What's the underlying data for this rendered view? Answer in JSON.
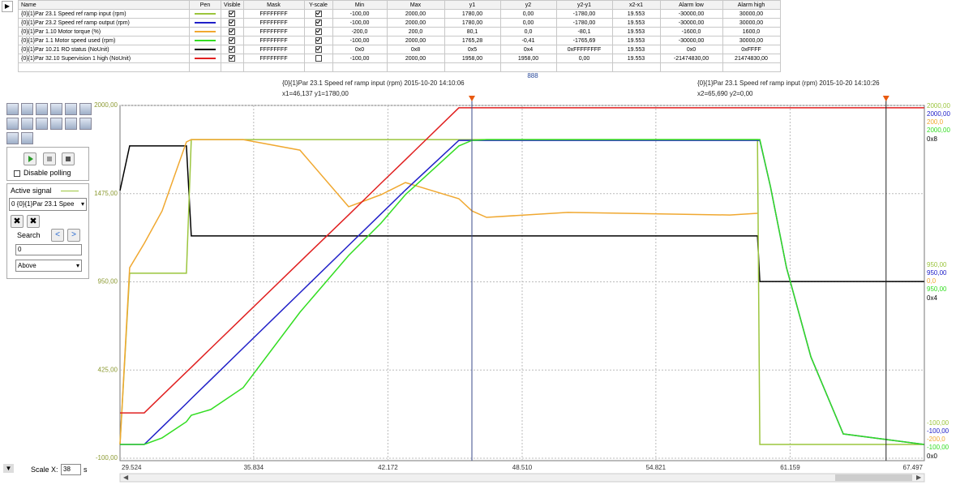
{
  "table": {
    "headers": [
      "Name",
      "Pen",
      "Visible",
      "Mask",
      "Y-scale",
      "Min",
      "Max",
      "y1",
      "y2",
      "y2-y1",
      "x2-x1",
      "Alarm low",
      "Alarm high"
    ],
    "rows": [
      {
        "name": "{0}{1}Par 23.1 Speed ref ramp input (rpm)",
        "pen": "#9bc53d",
        "visible": true,
        "mask": "FFFFFFFF",
        "y_scale": true,
        "min": "-100,00",
        "max": "2000,00",
        "y1": "1780,00",
        "y2": "0,00",
        "y2_y1": "-1780,00",
        "x2_x1": "19.553",
        "alarm_low": "-30000,00",
        "alarm_high": "30000,00"
      },
      {
        "name": "{0}{1}Par 23.2 Speed ref ramp output (rpm)",
        "pen": "#2020c8",
        "visible": true,
        "mask": "FFFFFFFF",
        "y_scale": true,
        "min": "-100,00",
        "max": "2000,00",
        "y1": "1780,00",
        "y2": "0,00",
        "y2_y1": "-1780,00",
        "x2_x1": "19.553",
        "alarm_low": "-30000,00",
        "alarm_high": "30000,00"
      },
      {
        "name": "{0}{1}Par 1.10 Motor torque (%)",
        "pen": "#f0a830",
        "visible": true,
        "mask": "FFFFFFFF",
        "y_scale": true,
        "min": "-200,0",
        "max": "200,0",
        "y1": "80,1",
        "y2": "0,0",
        "y2_y1": "-80,1",
        "x2_x1": "19.553",
        "alarm_low": "-1600,0",
        "alarm_high": "1600,0"
      },
      {
        "name": "{0}{1}Par 1.1 Motor speed used (rpm)",
        "pen": "#33dd22",
        "visible": true,
        "mask": "FFFFFFFF",
        "y_scale": true,
        "min": "-100,00",
        "max": "2000,00",
        "y1": "1765,28",
        "y2": "-0,41",
        "y2_y1": "-1765,69",
        "x2_x1": "19.553",
        "alarm_low": "-30000,00",
        "alarm_high": "30000,00"
      },
      {
        "name": "{0}{1}Par 10.21 RO status (NoUnit)",
        "pen": "#000000",
        "visible": true,
        "mask": "FFFFFFFF",
        "y_scale": true,
        "min": "0x0",
        "max": "0x8",
        "y1": "0x5",
        "y2": "0x4",
        "y2_y1": "0xFFFFFFFF",
        "x2_x1": "19.553",
        "alarm_low": "0x0",
        "alarm_high": "0xFFFF"
      },
      {
        "name": "{0}{1}Par 32.10 Supervision 1 high (NoUnit)",
        "pen": "#e02020",
        "visible": true,
        "mask": "FFFFFFFF",
        "y_scale": false,
        "min": "-100,00",
        "max": "2000,00",
        "y1": "1958,00",
        "y2": "1958,00",
        "y2_y1": "0,00",
        "x2_x1": "19.553",
        "alarm_low": "-21474830,00",
        "alarm_high": "21474830,00"
      }
    ]
  },
  "stray_label": "888",
  "chart_data": {
    "type": "line",
    "xlim": [
      29.524,
      67.497
    ],
    "ylim": [
      -100,
      2000
    ],
    "xticks": [
      29.524,
      35.834,
      42.172,
      {
        "value": 48.51,
        "label": "48.510"
      },
      54.821,
      61.159,
      67.497
    ],
    "yticks": [
      {
        "value": -100,
        "label": "-100,00"
      },
      {
        "value": 425,
        "label": "425,00"
      },
      {
        "value": 950,
        "label": "950,00"
      },
      {
        "value": 1475,
        "label": "1475,00"
      },
      {
        "value": 2000,
        "label": "2000,00"
      }
    ],
    "grid": true,
    "x": [
      29.524,
      29.98,
      30.67,
      31.51,
      32.66,
      32.89,
      33.81,
      35.34,
      38.02,
      40.32,
      41.85,
      43.0,
      45.52,
      46.14,
      46.83,
      50.66,
      58.31,
      59.62,
      59.73,
      60.23,
      60.99,
      62.14,
      63.67,
      67.49
    ],
    "series": [
      {
        "color": "#000000",
        "values": [
          1493,
          1759,
          1759,
          1759,
          1759,
          1223,
          1223,
          1223,
          1223,
          1223,
          1223,
          1223,
          1223,
          1223,
          1223,
          1223,
          1223,
          1223,
          952,
          952,
          952,
          952,
          952,
          952
        ]
      },
      {
        "color": "#9bc53d",
        "values": [
          -18,
          1001,
          1001,
          1001,
          1001,
          1797,
          1797,
          1797,
          1797,
          1797,
          1797,
          1797,
          1797,
          1797,
          1797,
          1797,
          1797,
          1797,
          -18,
          -18,
          -18,
          -18,
          -18,
          -18
        ]
      },
      {
        "color": "#f0a830",
        "values": [
          -18,
          1034,
          1179,
          1372,
          1783,
          1797,
          1797,
          1797,
          1734,
          1397,
          1469,
          1541,
          1445,
          1372,
          1334,
          1363,
          1348,
          1358,
          null,
          null,
          null,
          null,
          null,
          null
        ]
      },
      {
        "color": "#e02020",
        "values": [
          170,
          170,
          170,
          273,
          413,
          441,
          554,
          741,
          1069,
          1349,
          1537,
          1677,
          1986,
          1986,
          1986,
          1986,
          1986,
          1986,
          1986,
          1986,
          1986,
          1986,
          1986,
          1986
        ]
      },
      {
        "color": "#2020c8",
        "values": [
          -18,
          -18,
          -18,
          85,
          226,
          255,
          368,
          556,
          885,
          1167,
          1355,
          1496,
          1792,
          1792,
          1792,
          1792,
          1792,
          1792,
          1792,
          1517,
          1034,
          503,
          45,
          -18
        ]
      },
      {
        "color": "#33dd22",
        "values": [
          -18,
          -18,
          -18,
          21,
          117,
          156,
          190,
          320,
          769,
          1107,
          1300,
          1469,
          1759,
          1792,
          1797,
          1797,
          1797,
          1797,
          1797,
          1517,
          1034,
          503,
          45,
          -18
        ]
      }
    ],
    "right_axes": [
      {
        "color": "#9bc53d",
        "labels": [
          "2000,00",
          "950,00",
          "-100,00"
        ]
      },
      {
        "color": "#2020c8",
        "labels": [
          "2000,00",
          "950,00",
          "-100,00"
        ]
      },
      {
        "color": "#f0a830",
        "labels": [
          "200,0",
          "0,0",
          "-200,0"
        ]
      },
      {
        "color": "#33dd22",
        "labels": [
          "2000,00",
          "950,00",
          "-100,00"
        ]
      },
      {
        "color": "#000000",
        "labels": [
          "0x8",
          "0x4",
          "0x0"
        ]
      }
    ],
    "cursors": [
      {
        "x": 46.137,
        "color": "#3a4a8a",
        "title": "{0}{1}Par 23.1 Speed ref ramp input (rpm) 2015-10-20 14:10:06",
        "readout": "x1=46,137 y1=1780,00"
      },
      {
        "x": 65.69,
        "color": "#222222",
        "title": "{0}{1}Par 23.1 Speed ref ramp input (rpm) 2015-10-20 14:10:26",
        "readout": "x2=65,690 y2=0,00"
      }
    ]
  },
  "controls": {
    "disable_polling": "Disable polling",
    "active_signal": "Active signal",
    "signal_select": "0 {0}{1}Par 23.1 Spee",
    "search": "Search",
    "search_value": "0",
    "direction": "Above",
    "scale_x_label": "Scale X:",
    "scale_x_value": "38",
    "scale_x_unit": "s"
  }
}
